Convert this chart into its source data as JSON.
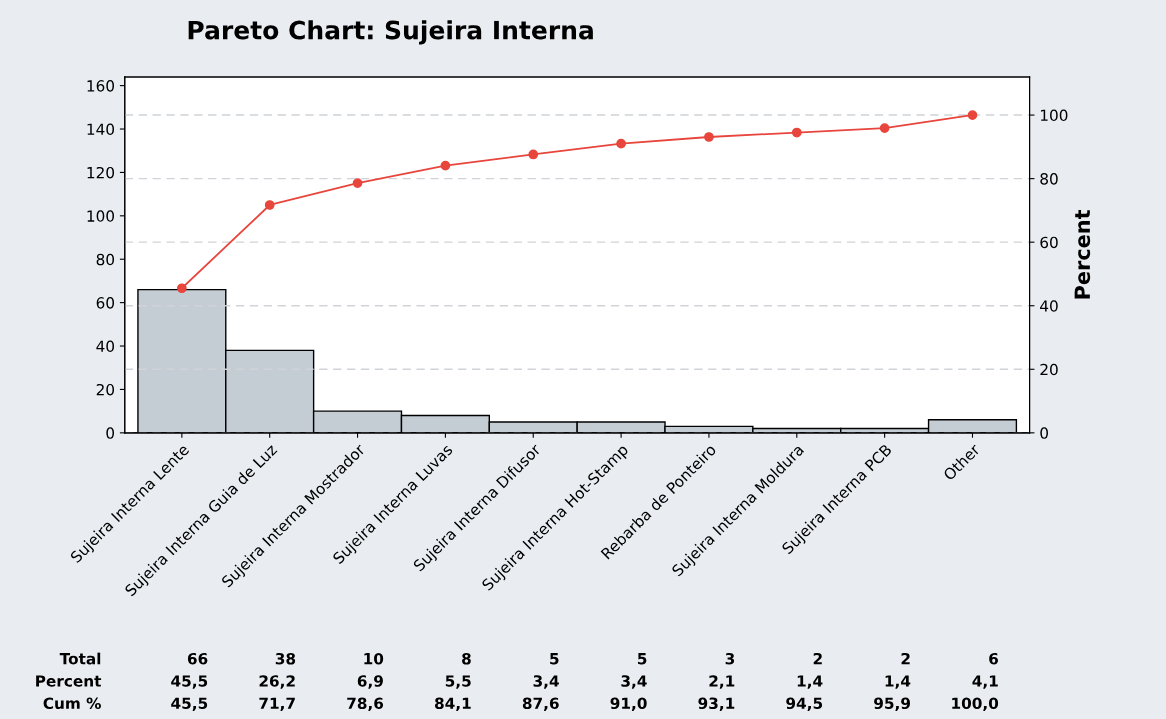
{
  "chart_data": {
    "type": "bar",
    "title": "Pareto Chart: Sujeira Interna",
    "y2label": "Percent",
    "categories": [
      "Sujeira Interna Lente",
      "Sujeira Interna Guia de Luz",
      "Sujeira Interna Mostrador",
      "Sujeira Interna Luvas",
      "Sujeira Interna Difusor",
      "Sujeira Interna Hot-Stamp",
      "Rebarba de Ponteiro",
      "Sujeira Interna Moldura",
      "Sujeira Interna PCB",
      "Other"
    ],
    "series": [
      {
        "color": "#c4ccd4",
        "values": [
          66,
          38,
          10,
          8,
          5,
          5,
          3,
          2,
          2,
          6
        ],
        "value_labels": [
          "66",
          "38",
          "10",
          "8",
          "5",
          "5",
          "3",
          "2",
          "2",
          "6"
        ]
      },
      {
        "type": "line",
        "axis": "y2",
        "color": "#e8453c",
        "marker": "circle",
        "values": [
          45.5,
          71.7,
          78.6,
          84.1,
          87.6,
          91.0,
          93.1,
          94.5,
          95.9,
          100.0
        ],
        "value_labels": [
          "45,5",
          "71,7",
          "78,6",
          "84,1",
          "87,6",
          "91,0",
          "93,1",
          "94,5",
          "95,9",
          "100,0"
        ]
      }
    ],
    "annotations": [
      "Total",
      "Percent",
      "Cum %",
      "45,5",
      "26,2",
      "6,9",
      "5,5",
      "3,4",
      "3,4",
      "2,1",
      "1,4",
      "1,4",
      "4,1"
    ],
    "ylim": [
      0,
      164
    ],
    "yticks": [
      0,
      20,
      40,
      60,
      80,
      100,
      120,
      140,
      160
    ],
    "y2lim": [
      0,
      112
    ],
    "y2ticks": [
      0,
      20,
      40,
      60,
      80,
      100
    ],
    "grid": "y2"
  }
}
